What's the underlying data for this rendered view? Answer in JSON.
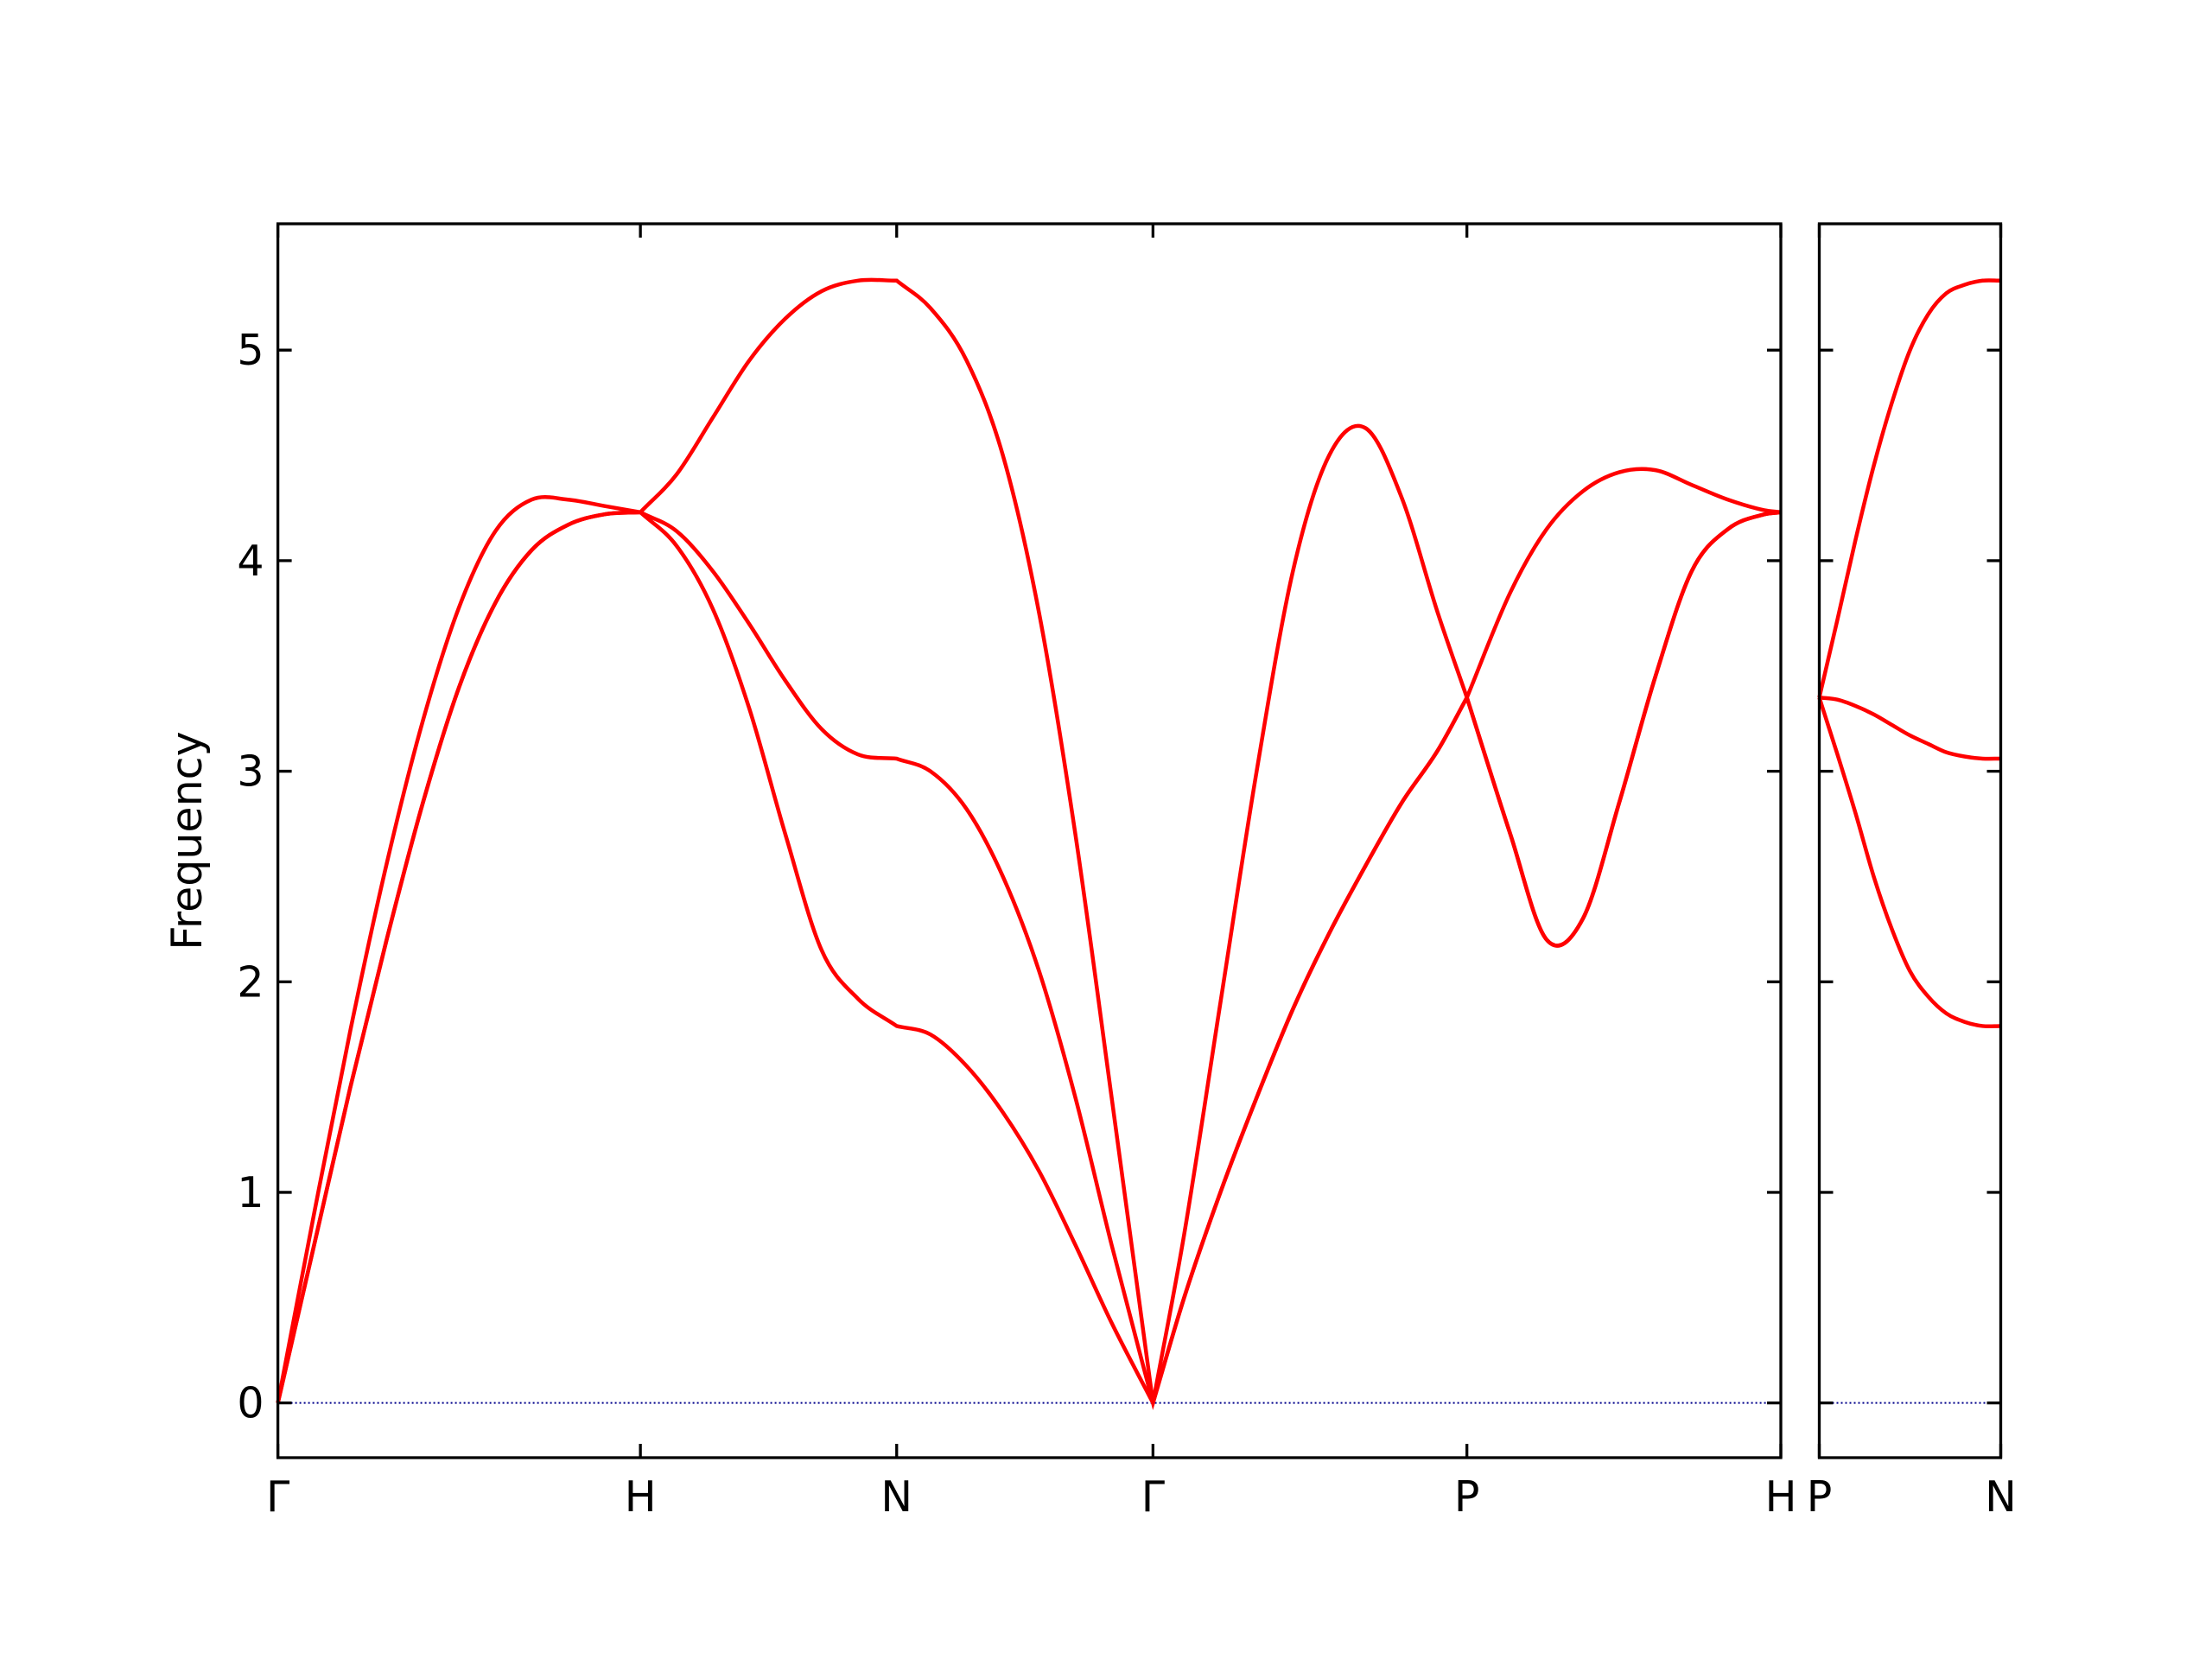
{
  "chart_data": [
    {
      "type": "line",
      "ylabel": "Frequency",
      "x": [
        0,
        0.1,
        0.2,
        0.3,
        0.4,
        0.5,
        0.6,
        0.7,
        0.8,
        0.9,
        1,
        1.1,
        1.2,
        1.3,
        1.4,
        1.5,
        1.6,
        1.707,
        1.8,
        1.9,
        2.0,
        2.1,
        2.2,
        2.3,
        2.414,
        2.5,
        2.6,
        2.7,
        2.8,
        2.9,
        3.0,
        3.1,
        3.2,
        3.28,
        3.4,
        3.5,
        3.6,
        3.7,
        3.8,
        3.9,
        4.0,
        4.1,
        4.146
      ],
      "series": [
        {
          "color": "#ff0000",
          "values": [
            0,
            0.75,
            1.5,
            2.2,
            2.85,
            3.4,
            3.8,
            4.05,
            4.17,
            4.22,
            4.23,
            4.07,
            3.77,
            3.3,
            2.7,
            2.15,
            1.92,
            1.79,
            1.75,
            1.6,
            1.38,
            1.1,
            0.75,
            0.38,
            0,
            0.5,
            1.0,
            1.45,
            1.87,
            2.23,
            2.55,
            2.85,
            3.1,
            3.35,
            2.7,
            2.2,
            2.3,
            2.85,
            3.45,
            3.95,
            4.15,
            4.22,
            4.23
          ]
        },
        {
          "color": "#ff0000",
          "values": [
            0,
            0.75,
            1.5,
            2.2,
            2.85,
            3.4,
            3.8,
            4.05,
            4.17,
            4.22,
            4.23,
            4.14,
            3.95,
            3.7,
            3.43,
            3.2,
            3.08,
            3.06,
            3.0,
            2.82,
            2.5,
            2.05,
            1.45,
            0.75,
            0,
            0.5,
            1.0,
            1.45,
            1.87,
            2.23,
            2.55,
            2.85,
            3.1,
            3.35,
            2.7,
            2.2,
            2.3,
            2.85,
            3.45,
            3.95,
            4.15,
            4.22,
            4.23
          ]
        },
        {
          "color": "#ff0000",
          "values": [
            0,
            0.9,
            1.77,
            2.56,
            3.24,
            3.78,
            4.14,
            4.29,
            4.29,
            4.26,
            4.23,
            4.41,
            4.68,
            4.95,
            5.15,
            5.28,
            5.33,
            5.33,
            5.2,
            4.95,
            4.5,
            3.75,
            2.7,
            1.45,
            0,
            0.8,
            1.9,
            3.0,
            3.95,
            4.5,
            4.63,
            4.3,
            3.75,
            3.35,
            3.85,
            4.15,
            4.33,
            4.42,
            4.43,
            4.36,
            4.29,
            4.24,
            4.23
          ]
        }
      ],
      "xlim": [
        0,
        4.146
      ],
      "xticks": [
        {
          "value": 0,
          "label": "Γ"
        },
        {
          "value": 1,
          "label": "H"
        },
        {
          "value": 1.707,
          "label": "N"
        },
        {
          "value": 2.414,
          "label": "Γ"
        },
        {
          "value": 3.28,
          "label": "P"
        },
        {
          "value": 4.146,
          "label": "H"
        }
      ],
      "ylim": [
        -0.26,
        5.6
      ],
      "yticks": [
        0,
        1,
        2,
        3,
        4,
        5
      ],
      "ytick_labels": true,
      "zero_line": {
        "value": 0,
        "color": "#00008b"
      }
    },
    {
      "type": "line",
      "x": [
        0,
        0.05,
        0.1,
        0.15,
        0.2,
        0.25,
        0.3,
        0.35,
        0.4,
        0.45,
        0.5
      ],
      "series": [
        {
          "color": "#ff0000",
          "values": [
            3.35,
            3.08,
            2.8,
            2.5,
            2.25,
            2.05,
            1.93,
            1.85,
            1.81,
            1.79,
            1.79
          ]
        },
        {
          "color": "#ff0000",
          "values": [
            3.35,
            3.34,
            3.31,
            3.27,
            3.22,
            3.17,
            3.13,
            3.09,
            3.07,
            3.06,
            3.06
          ]
        },
        {
          "color": "#ff0000",
          "values": [
            3.35,
            3.72,
            4.1,
            4.45,
            4.75,
            5.0,
            5.17,
            5.27,
            5.31,
            5.33,
            5.33
          ]
        }
      ],
      "xlim": [
        0,
        0.5
      ],
      "xticks": [
        {
          "value": 0,
          "label": "P"
        },
        {
          "value": 0.5,
          "label": "N"
        }
      ],
      "ylim": [
        -0.26,
        5.6
      ],
      "yticks": [
        0,
        1,
        2,
        3,
        4,
        5
      ],
      "ytick_labels": false,
      "zero_line": {
        "value": 0,
        "color": "#00008b"
      }
    }
  ]
}
